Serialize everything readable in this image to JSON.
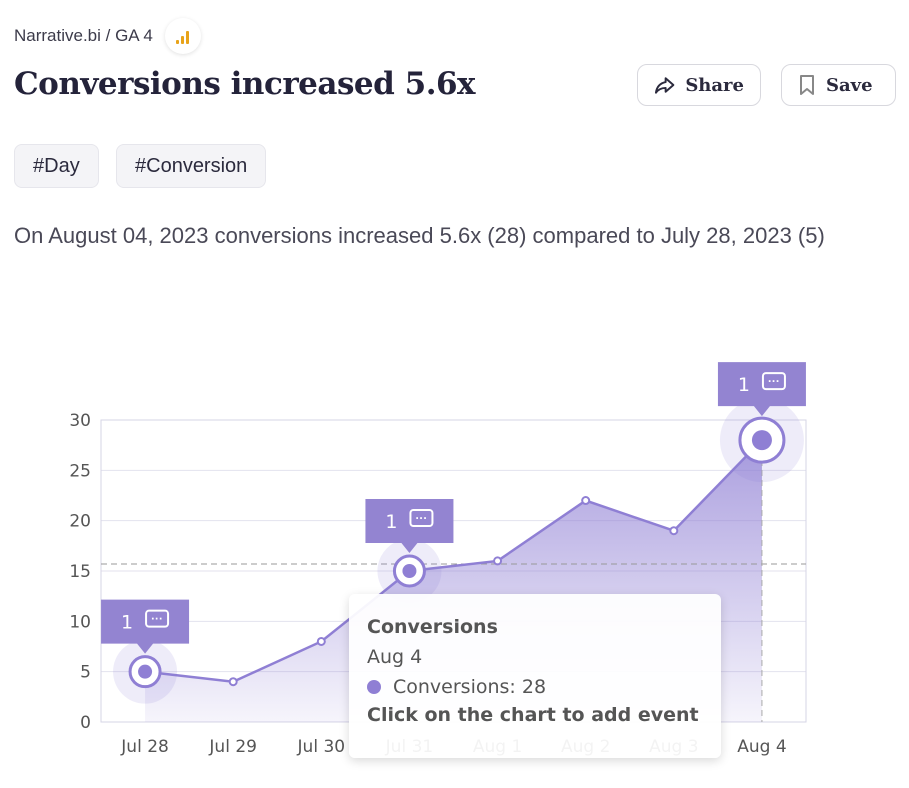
{
  "breadcrumb": {
    "text": "Narrative.bi / GA 4",
    "icon": "google-analytics-icon"
  },
  "title": "Conversions increased 5.6x",
  "actions": {
    "share_label": "Share",
    "save_label": "Save"
  },
  "tags": [
    "#Day",
    "#Conversion"
  ],
  "description": "On August 04, 2023 conversions increased 5.6x (28) compared to July 28, 2023 (5)",
  "colors": {
    "accent": "#8f7fd4",
    "annotation": "#9384d1",
    "title": "#24233a"
  },
  "chart_data": {
    "type": "area",
    "categories": [
      "Jul 28",
      "Jul 29",
      "Jul 30",
      "Jul 31",
      "Aug 1",
      "Aug 2",
      "Aug 3",
      "Aug 4"
    ],
    "series": [
      {
        "name": "Conversions",
        "values": [
          5,
          4,
          8,
          15,
          16,
          22,
          19,
          28
        ]
      }
    ],
    "ylim": [
      0,
      30
    ],
    "yticks": [
      0,
      5,
      10,
      15,
      20,
      25,
      30
    ],
    "grid": true,
    "reference_line": 15.7,
    "events": [
      {
        "category": "Jul 28",
        "count": "1"
      },
      {
        "category": "Jul 31",
        "count": "1"
      },
      {
        "category": "Aug 4",
        "count": "1"
      }
    ],
    "highlighted": "Aug 4"
  },
  "tooltip": {
    "title": "Conversions",
    "date": "Aug 4",
    "series_label": "Conversions: 28",
    "hint": "Click on the chart to add event"
  }
}
